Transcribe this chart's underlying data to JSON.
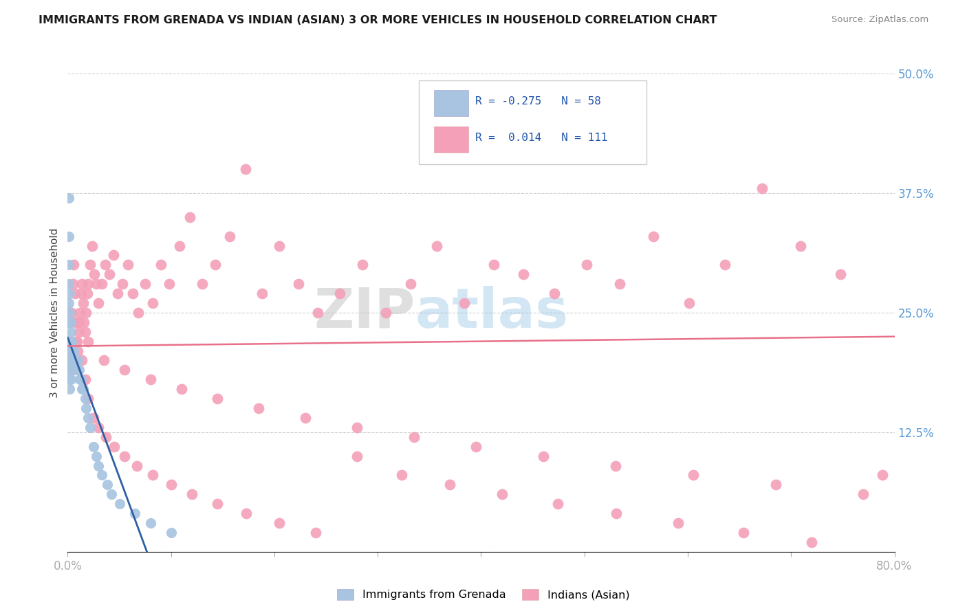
{
  "title": "IMMIGRANTS FROM GRENADA VS INDIAN (ASIAN) 3 OR MORE VEHICLES IN HOUSEHOLD CORRELATION CHART",
  "source": "Source: ZipAtlas.com",
  "legend_label1": "Immigrants from Grenada",
  "legend_label2": "Indians (Asian)",
  "ylabel_axis": "3 or more Vehicles in Household",
  "R1": -0.275,
  "N1": 58,
  "R2": 0.014,
  "N2": 111,
  "color1": "#a8c4e0",
  "color1_line": "#2e5fa3",
  "color2": "#f4a0b8",
  "color2_line": "#e8708a",
  "xlim": [
    0,
    0.8
  ],
  "ylim": [
    0,
    0.5
  ],
  "blue_x": [
    0.001,
    0.001,
    0.001,
    0.001,
    0.001,
    0.001,
    0.001,
    0.001,
    0.001,
    0.002,
    0.002,
    0.002,
    0.002,
    0.002,
    0.002,
    0.002,
    0.002,
    0.002,
    0.003,
    0.003,
    0.003,
    0.003,
    0.003,
    0.003,
    0.004,
    0.004,
    0.004,
    0.005,
    0.005,
    0.005,
    0.006,
    0.006,
    0.007,
    0.007,
    0.008,
    0.008,
    0.009,
    0.01,
    0.01,
    0.011,
    0.012,
    0.013,
    0.014,
    0.015,
    0.017,
    0.018,
    0.02,
    0.022,
    0.025,
    0.028,
    0.03,
    0.033,
    0.038,
    0.042,
    0.05,
    0.065,
    0.08,
    0.1
  ],
  "blue_y": [
    0.37,
    0.33,
    0.3,
    0.28,
    0.26,
    0.24,
    0.22,
    0.21,
    0.2,
    0.27,
    0.25,
    0.24,
    0.22,
    0.21,
    0.2,
    0.19,
    0.18,
    0.17,
    0.24,
    0.23,
    0.22,
    0.2,
    0.19,
    0.18,
    0.22,
    0.21,
    0.2,
    0.21,
    0.2,
    0.19,
    0.21,
    0.2,
    0.2,
    0.19,
    0.2,
    0.19,
    0.19,
    0.2,
    0.19,
    0.19,
    0.18,
    0.18,
    0.17,
    0.17,
    0.16,
    0.15,
    0.14,
    0.13,
    0.11,
    0.1,
    0.09,
    0.08,
    0.07,
    0.06,
    0.05,
    0.04,
    0.03,
    0.02
  ],
  "pink_x": [
    0.001,
    0.002,
    0.003,
    0.004,
    0.005,
    0.006,
    0.007,
    0.008,
    0.009,
    0.01,
    0.011,
    0.012,
    0.013,
    0.014,
    0.015,
    0.016,
    0.017,
    0.018,
    0.019,
    0.02,
    0.022,
    0.024,
    0.026,
    0.028,
    0.03,
    0.033,
    0.036,
    0.04,
    0.044,
    0.048,
    0.053,
    0.058,
    0.063,
    0.068,
    0.075,
    0.082,
    0.09,
    0.098,
    0.108,
    0.118,
    0.13,
    0.143,
    0.157,
    0.172,
    0.188,
    0.205,
    0.223,
    0.242,
    0.263,
    0.285,
    0.308,
    0.332,
    0.357,
    0.384,
    0.412,
    0.441,
    0.471,
    0.502,
    0.534,
    0.567,
    0.601,
    0.636,
    0.672,
    0.709,
    0.748,
    0.788,
    0.005,
    0.008,
    0.011,
    0.014,
    0.017,
    0.02,
    0.025,
    0.03,
    0.037,
    0.045,
    0.055,
    0.067,
    0.082,
    0.1,
    0.12,
    0.145,
    0.173,
    0.205,
    0.24,
    0.28,
    0.323,
    0.37,
    0.42,
    0.474,
    0.531,
    0.591,
    0.654,
    0.72,
    0.01,
    0.02,
    0.035,
    0.055,
    0.08,
    0.11,
    0.145,
    0.185,
    0.23,
    0.28,
    0.335,
    0.395,
    0.46,
    0.53,
    0.605,
    0.685,
    0.77
  ],
  "pink_y": [
    0.21,
    0.2,
    0.22,
    0.25,
    0.28,
    0.3,
    0.27,
    0.24,
    0.22,
    0.21,
    0.23,
    0.25,
    0.27,
    0.28,
    0.26,
    0.24,
    0.23,
    0.25,
    0.27,
    0.28,
    0.3,
    0.32,
    0.29,
    0.28,
    0.26,
    0.28,
    0.3,
    0.29,
    0.31,
    0.27,
    0.28,
    0.3,
    0.27,
    0.25,
    0.28,
    0.26,
    0.3,
    0.28,
    0.32,
    0.35,
    0.28,
    0.3,
    0.33,
    0.4,
    0.27,
    0.32,
    0.28,
    0.25,
    0.27,
    0.3,
    0.25,
    0.28,
    0.32,
    0.26,
    0.3,
    0.29,
    0.27,
    0.3,
    0.28,
    0.33,
    0.26,
    0.3,
    0.38,
    0.32,
    0.29,
    0.08,
    0.19,
    0.22,
    0.24,
    0.2,
    0.18,
    0.16,
    0.14,
    0.13,
    0.12,
    0.11,
    0.1,
    0.09,
    0.08,
    0.07,
    0.06,
    0.05,
    0.04,
    0.03,
    0.02,
    0.1,
    0.08,
    0.07,
    0.06,
    0.05,
    0.04,
    0.03,
    0.02,
    0.01,
    0.24,
    0.22,
    0.2,
    0.19,
    0.18,
    0.17,
    0.16,
    0.15,
    0.14,
    0.13,
    0.12,
    0.11,
    0.1,
    0.09,
    0.08,
    0.07,
    0.06
  ]
}
